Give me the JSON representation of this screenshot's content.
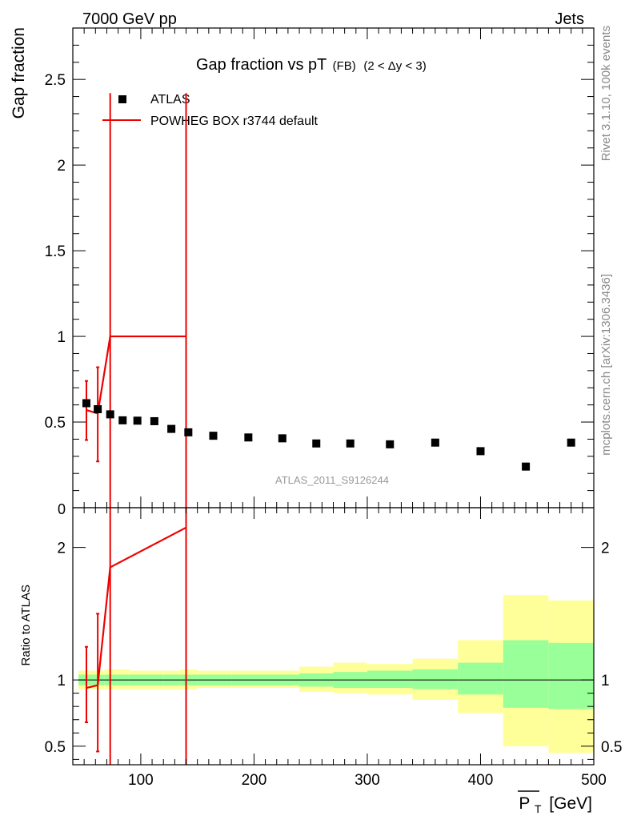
{
  "header": {
    "left": "7000 GeV pp",
    "right": "Jets"
  },
  "title": {
    "main": "Gap fraction vs pT",
    "sub": "(FB)",
    "range": "(2 < Δy < 3)"
  },
  "side_labels": {
    "rivet": "Rivet 3.1.10,  100k events",
    "mcplots": "mcplots.cern.ch [arXiv:1306.3436]"
  },
  "watermark": "ATLAS_2011_S9126244",
  "legend": {
    "atlas": "ATLAS",
    "powheg": "POWHEG BOX r3744 default"
  },
  "colors": {
    "mc": "#ee0000",
    "band_inner": "#99ff99",
    "band_outer": "#ffff99",
    "data": "#000000"
  },
  "chart_data": {
    "type": "scatter",
    "xlabel_main": "P",
    "xlabel_sub": "T",
    "xlabel_unit": "[GeV]",
    "xlim": [
      40,
      500
    ],
    "x_ticks": [
      100,
      200,
      300,
      400,
      500
    ],
    "x_tick_labels": [
      "100",
      "200",
      "300",
      "400",
      "500"
    ],
    "main_panel": {
      "ylabel": "Gap fraction",
      "ylim": [
        0,
        2.8
      ],
      "y_ticks": [
        0.5,
        1,
        1.5,
        2,
        2.5
      ],
      "y_tick_labels": [
        "0.5",
        "1",
        "1.5",
        "2",
        "2.5"
      ],
      "y_zero_label": "0",
      "atlas": {
        "x": [
          52,
          62,
          73,
          84,
          97,
          112,
          127,
          142,
          164,
          195,
          225,
          255,
          285,
          320,
          360,
          400,
          440,
          480
        ],
        "y": [
          0.61,
          0.575,
          0.545,
          0.51,
          0.508,
          0.505,
          0.46,
          0.44,
          0.42,
          0.41,
          0.405,
          0.375,
          0.375,
          0.37,
          0.38,
          0.33,
          0.24,
          0.38
        ]
      },
      "powheg": {
        "points": [
          {
            "x": 52,
            "y": 0.57,
            "lo": 0.395,
            "hi": 0.74
          },
          {
            "x": 62,
            "y": 0.55,
            "lo": 0.27,
            "hi": 0.82
          },
          {
            "x": 73,
            "y": 1.0,
            "lo": -1,
            "hi": 2.42
          },
          {
            "x": 140,
            "y": 1.0,
            "lo": -1,
            "hi": 2.42
          }
        ]
      }
    },
    "ratio_panel": {
      "ylabel": "Ratio to ATLAS",
      "ylim": [
        0.36,
        2.3
      ],
      "y_ticks": [
        0.5,
        1,
        2
      ],
      "y_tick_labels": [
        "0.5",
        "1",
        "2"
      ],
      "bands": [
        {
          "x0": 45,
          "x1": 57,
          "in_lo": 0.96,
          "in_hi": 1.04,
          "out_lo": 0.93,
          "out_hi": 1.07
        },
        {
          "x0": 57,
          "x1": 68,
          "in_lo": 0.96,
          "in_hi": 1.04,
          "out_lo": 0.93,
          "out_hi": 1.07
        },
        {
          "x0": 68,
          "x1": 79,
          "in_lo": 0.96,
          "in_hi": 1.04,
          "out_lo": 0.93,
          "out_hi": 1.08
        },
        {
          "x0": 79,
          "x1": 90,
          "in_lo": 0.96,
          "in_hi": 1.04,
          "out_lo": 0.93,
          "out_hi": 1.08
        },
        {
          "x0": 90,
          "x1": 105,
          "in_lo": 0.96,
          "in_hi": 1.04,
          "out_lo": 0.93,
          "out_hi": 1.07
        },
        {
          "x0": 105,
          "x1": 120,
          "in_lo": 0.96,
          "in_hi": 1.04,
          "out_lo": 0.93,
          "out_hi": 1.07
        },
        {
          "x0": 120,
          "x1": 135,
          "in_lo": 0.96,
          "in_hi": 1.04,
          "out_lo": 0.93,
          "out_hi": 1.07
        },
        {
          "x0": 135,
          "x1": 150,
          "in_lo": 0.96,
          "in_hi": 1.04,
          "out_lo": 0.93,
          "out_hi": 1.08
        },
        {
          "x0": 150,
          "x1": 180,
          "in_lo": 0.96,
          "in_hi": 1.04,
          "out_lo": 0.94,
          "out_hi": 1.07
        },
        {
          "x0": 180,
          "x1": 210,
          "in_lo": 0.96,
          "in_hi": 1.04,
          "out_lo": 0.94,
          "out_hi": 1.07
        },
        {
          "x0": 210,
          "x1": 240,
          "in_lo": 0.96,
          "in_hi": 1.04,
          "out_lo": 0.94,
          "out_hi": 1.07
        },
        {
          "x0": 240,
          "x1": 270,
          "in_lo": 0.95,
          "in_hi": 1.05,
          "out_lo": 0.91,
          "out_hi": 1.1
        },
        {
          "x0": 270,
          "x1": 300,
          "in_lo": 0.94,
          "in_hi": 1.06,
          "out_lo": 0.9,
          "out_hi": 1.13
        },
        {
          "x0": 300,
          "x1": 340,
          "in_lo": 0.94,
          "in_hi": 1.07,
          "out_lo": 0.89,
          "out_hi": 1.12
        },
        {
          "x0": 340,
          "x1": 380,
          "in_lo": 0.93,
          "in_hi": 1.08,
          "out_lo": 0.85,
          "out_hi": 1.16
        },
        {
          "x0": 380,
          "x1": 420,
          "in_lo": 0.89,
          "in_hi": 1.13,
          "out_lo": 0.75,
          "out_hi": 1.3
        },
        {
          "x0": 420,
          "x1": 460,
          "in_lo": 0.79,
          "in_hi": 1.3,
          "out_lo": 0.5,
          "out_hi": 1.64
        },
        {
          "x0": 460,
          "x1": 500,
          "in_lo": 0.78,
          "in_hi": 1.28,
          "out_lo": 0.45,
          "out_hi": 1.6
        }
      ],
      "reference_y": 1.0,
      "powheg": {
        "points": [
          {
            "x": 52,
            "y": 0.94,
            "lo": 0.68,
            "hi": 1.25
          },
          {
            "x": 62,
            "y": 0.96,
            "lo": 0.46,
            "hi": 1.5
          },
          {
            "x": 73,
            "y": 1.85,
            "lo": -1,
            "hi": 9
          },
          {
            "x": 140,
            "y": 2.15,
            "lo": -1,
            "hi": 9
          }
        ]
      }
    }
  }
}
